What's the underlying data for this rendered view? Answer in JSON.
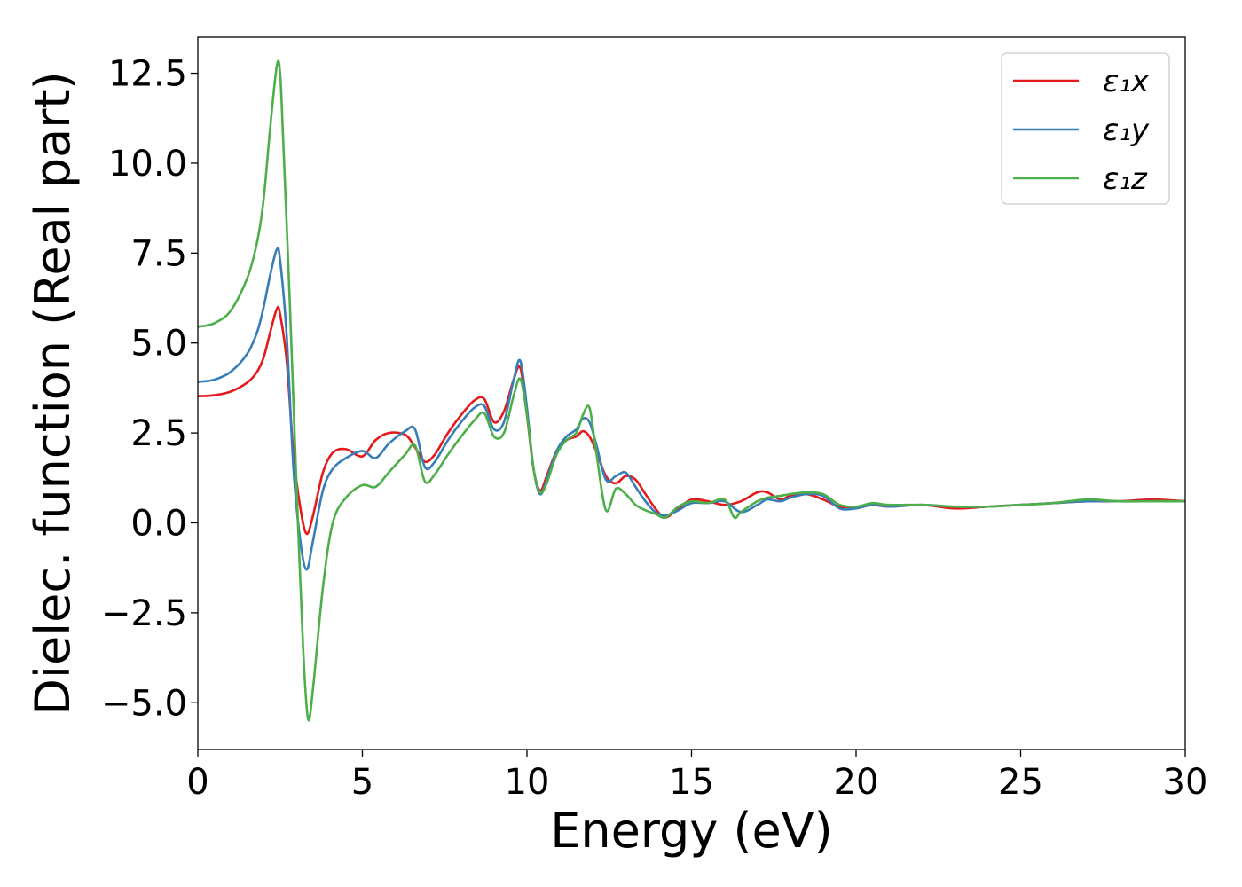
{
  "chart_data": {
    "type": "line",
    "title": "",
    "xlabel": "Energy (eV)",
    "ylabel": "Dielec. function (Real part)",
    "xlim": [
      0,
      30
    ],
    "ylim": [
      -6.3,
      13.5
    ],
    "xticks": [
      0,
      5,
      10,
      15,
      20,
      25,
      30
    ],
    "xtick_labels": [
      "0",
      "5",
      "10",
      "15",
      "20",
      "25",
      "30"
    ],
    "yticks": [
      -5.0,
      -2.5,
      0.0,
      2.5,
      5.0,
      7.5,
      10.0,
      12.5
    ],
    "ytick_labels": [
      "−5.0",
      "−2.5",
      "0.0",
      "2.5",
      "5.0",
      "7.5",
      "10.0",
      "12.5"
    ],
    "grid": false,
    "legend_position": "top-right",
    "series": [
      {
        "name": "ε₁x",
        "color": "#e41a1c",
        "x": [
          0,
          0.5,
          1,
          1.5,
          1.8,
          2.0,
          2.2,
          2.4,
          2.5,
          2.7,
          2.9,
          3.1,
          3.3,
          3.5,
          3.8,
          4.1,
          4.5,
          5.0,
          5.4,
          5.8,
          6.3,
          6.6,
          6.9,
          7.2,
          7.6,
          8.0,
          8.4,
          8.7,
          9.0,
          9.3,
          9.6,
          9.8,
          10.0,
          10.2,
          10.4,
          10.6,
          10.9,
          11.2,
          11.5,
          11.7,
          11.9,
          12.1,
          12.4,
          12.7,
          13.0,
          13.3,
          13.6,
          13.9,
          14.2,
          14.6,
          15.0,
          15.5,
          16.0,
          16.5,
          17.0,
          17.3,
          17.7,
          18.0,
          18.5,
          19.0,
          19.5,
          20.0,
          20.5,
          21.0,
          22.0,
          23.0,
          24.0,
          25.0,
          26.0,
          27.0,
          28.0,
          29.0,
          30.0
        ],
        "values": [
          3.52,
          3.55,
          3.65,
          3.9,
          4.2,
          4.6,
          5.3,
          5.95,
          5.8,
          4.5,
          2.0,
          0.5,
          -0.3,
          0.2,
          1.4,
          1.95,
          2.05,
          1.85,
          2.3,
          2.5,
          2.45,
          2.1,
          1.7,
          1.9,
          2.5,
          3.0,
          3.4,
          3.45,
          2.8,
          3.1,
          4.0,
          4.3,
          3.0,
          1.5,
          0.9,
          1.3,
          2.0,
          2.3,
          2.4,
          2.55,
          2.4,
          2.0,
          1.3,
          1.1,
          1.3,
          1.2,
          0.8,
          0.4,
          0.15,
          0.4,
          0.65,
          0.6,
          0.5,
          0.6,
          0.85,
          0.85,
          0.65,
          0.75,
          0.8,
          0.65,
          0.45,
          0.45,
          0.5,
          0.45,
          0.5,
          0.4,
          0.45,
          0.5,
          0.55,
          0.6,
          0.6,
          0.65,
          0.6
        ]
      },
      {
        "name": "ε₁y",
        "color": "#377eb8",
        "x": [
          0,
          0.5,
          1,
          1.5,
          1.8,
          2.0,
          2.2,
          2.4,
          2.5,
          2.7,
          2.9,
          3.1,
          3.3,
          3.5,
          3.8,
          4.1,
          4.5,
          5.0,
          5.4,
          5.8,
          6.3,
          6.6,
          6.9,
          7.2,
          7.6,
          8.0,
          8.4,
          8.7,
          9.0,
          9.3,
          9.6,
          9.8,
          10.0,
          10.2,
          10.4,
          10.6,
          10.9,
          11.2,
          11.5,
          11.7,
          11.9,
          12.1,
          12.4,
          12.7,
          13.0,
          13.3,
          13.6,
          13.9,
          14.2,
          14.6,
          15.0,
          15.5,
          16.0,
          16.5,
          17.0,
          17.3,
          17.7,
          18.0,
          18.5,
          19.0,
          19.5,
          20.0,
          20.5,
          21.0,
          22.0,
          23.0,
          24.0,
          25.0,
          26.0,
          27.0,
          28.0,
          29.0,
          30.0
        ],
        "values": [
          3.92,
          3.98,
          4.2,
          4.7,
          5.3,
          6.0,
          6.9,
          7.6,
          7.3,
          5.2,
          1.6,
          -0.4,
          -1.3,
          -0.5,
          0.9,
          1.5,
          1.8,
          2.0,
          1.8,
          2.2,
          2.55,
          2.6,
          1.55,
          1.7,
          2.3,
          2.8,
          3.2,
          3.25,
          2.6,
          2.8,
          4.0,
          4.5,
          3.2,
          1.5,
          0.8,
          1.2,
          2.0,
          2.4,
          2.6,
          2.9,
          2.8,
          2.2,
          1.2,
          1.3,
          1.4,
          1.0,
          0.6,
          0.3,
          0.2,
          0.35,
          0.55,
          0.55,
          0.6,
          0.3,
          0.5,
          0.65,
          0.6,
          0.7,
          0.8,
          0.75,
          0.4,
          0.4,
          0.5,
          0.45,
          0.5,
          0.45,
          0.45,
          0.5,
          0.55,
          0.6,
          0.6,
          0.6,
          0.6
        ]
      },
      {
        "name": "ε₁z",
        "color": "#4daf4a",
        "x": [
          0,
          0.5,
          1,
          1.5,
          1.8,
          2.0,
          2.2,
          2.4,
          2.5,
          2.6,
          2.8,
          3.0,
          3.2,
          3.35,
          3.5,
          3.8,
          4.1,
          4.5,
          5.0,
          5.4,
          5.8,
          6.3,
          6.6,
          6.9,
          7.2,
          7.6,
          8.0,
          8.4,
          8.7,
          9.0,
          9.3,
          9.6,
          9.8,
          10.0,
          10.2,
          10.4,
          10.6,
          10.9,
          11.2,
          11.5,
          11.7,
          11.9,
          12.1,
          12.4,
          12.7,
          13.0,
          13.3,
          13.6,
          13.9,
          14.2,
          14.6,
          15.0,
          15.5,
          16.0,
          16.3,
          16.5,
          17.0,
          17.3,
          17.7,
          18.0,
          18.5,
          19.0,
          19.5,
          20.0,
          20.5,
          21.0,
          22.0,
          23.0,
          24.0,
          25.0,
          26.0,
          27.0,
          28.0,
          29.0,
          30.0
        ],
        "values": [
          5.45,
          5.55,
          5.9,
          6.8,
          7.8,
          9.0,
          11.0,
          12.7,
          12.5,
          10.5,
          6.0,
          1.0,
          -3.5,
          -5.45,
          -4.6,
          -1.8,
          0.0,
          0.7,
          1.05,
          1.0,
          1.4,
          1.9,
          2.15,
          1.15,
          1.35,
          1.9,
          2.4,
          2.85,
          3.05,
          2.4,
          2.5,
          3.55,
          4.0,
          3.0,
          1.5,
          0.85,
          1.1,
          1.9,
          2.3,
          2.5,
          3.0,
          3.2,
          2.0,
          0.35,
          0.95,
          0.8,
          0.5,
          0.35,
          0.25,
          0.15,
          0.45,
          0.6,
          0.55,
          0.65,
          0.15,
          0.3,
          0.6,
          0.7,
          0.75,
          0.8,
          0.85,
          0.8,
          0.5,
          0.45,
          0.55,
          0.5,
          0.5,
          0.45,
          0.45,
          0.5,
          0.55,
          0.65,
          0.6,
          0.6,
          0.6
        ]
      }
    ]
  }
}
